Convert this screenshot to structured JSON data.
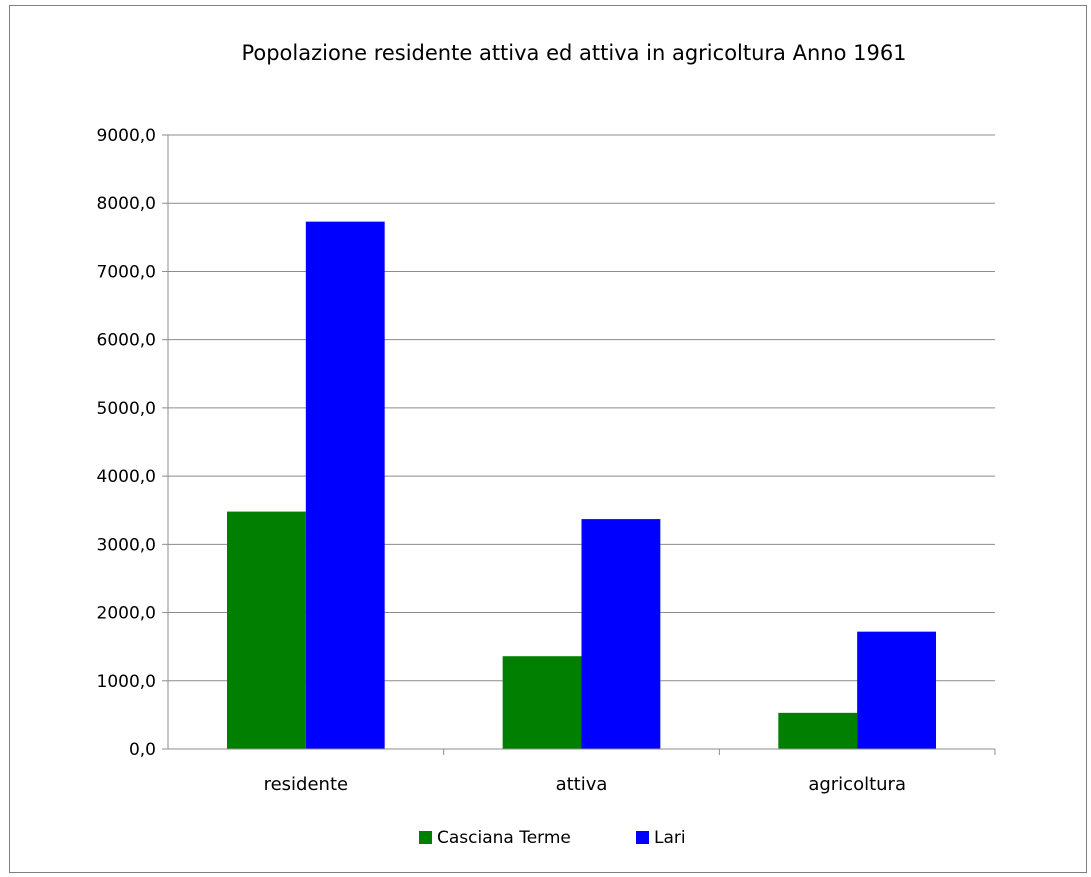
{
  "chart_data": {
    "type": "bar",
    "title": "Popolazione  residente attiva ed attiva in agricoltura Anno 1961",
    "xlabel": "",
    "ylabel": "",
    "categories": [
      "residente",
      "attiva",
      "agricoltura"
    ],
    "series": [
      {
        "name": "Casciana Terme",
        "values": [
          3480,
          1360,
          530
        ],
        "color": "#007f00"
      },
      {
        "name": "Lari",
        "values": [
          7730,
          3370,
          1720
        ],
        "color": "#0000ff"
      }
    ],
    "ylim": [
      0,
      9000
    ],
    "yticks": [
      "0,0",
      "1000,0",
      "2000,0",
      "3000,0",
      "4000,0",
      "5000,0",
      "6000,0",
      "7000,0",
      "8000,0",
      "9000,0"
    ],
    "grid": true,
    "legend_position": "bottom"
  }
}
